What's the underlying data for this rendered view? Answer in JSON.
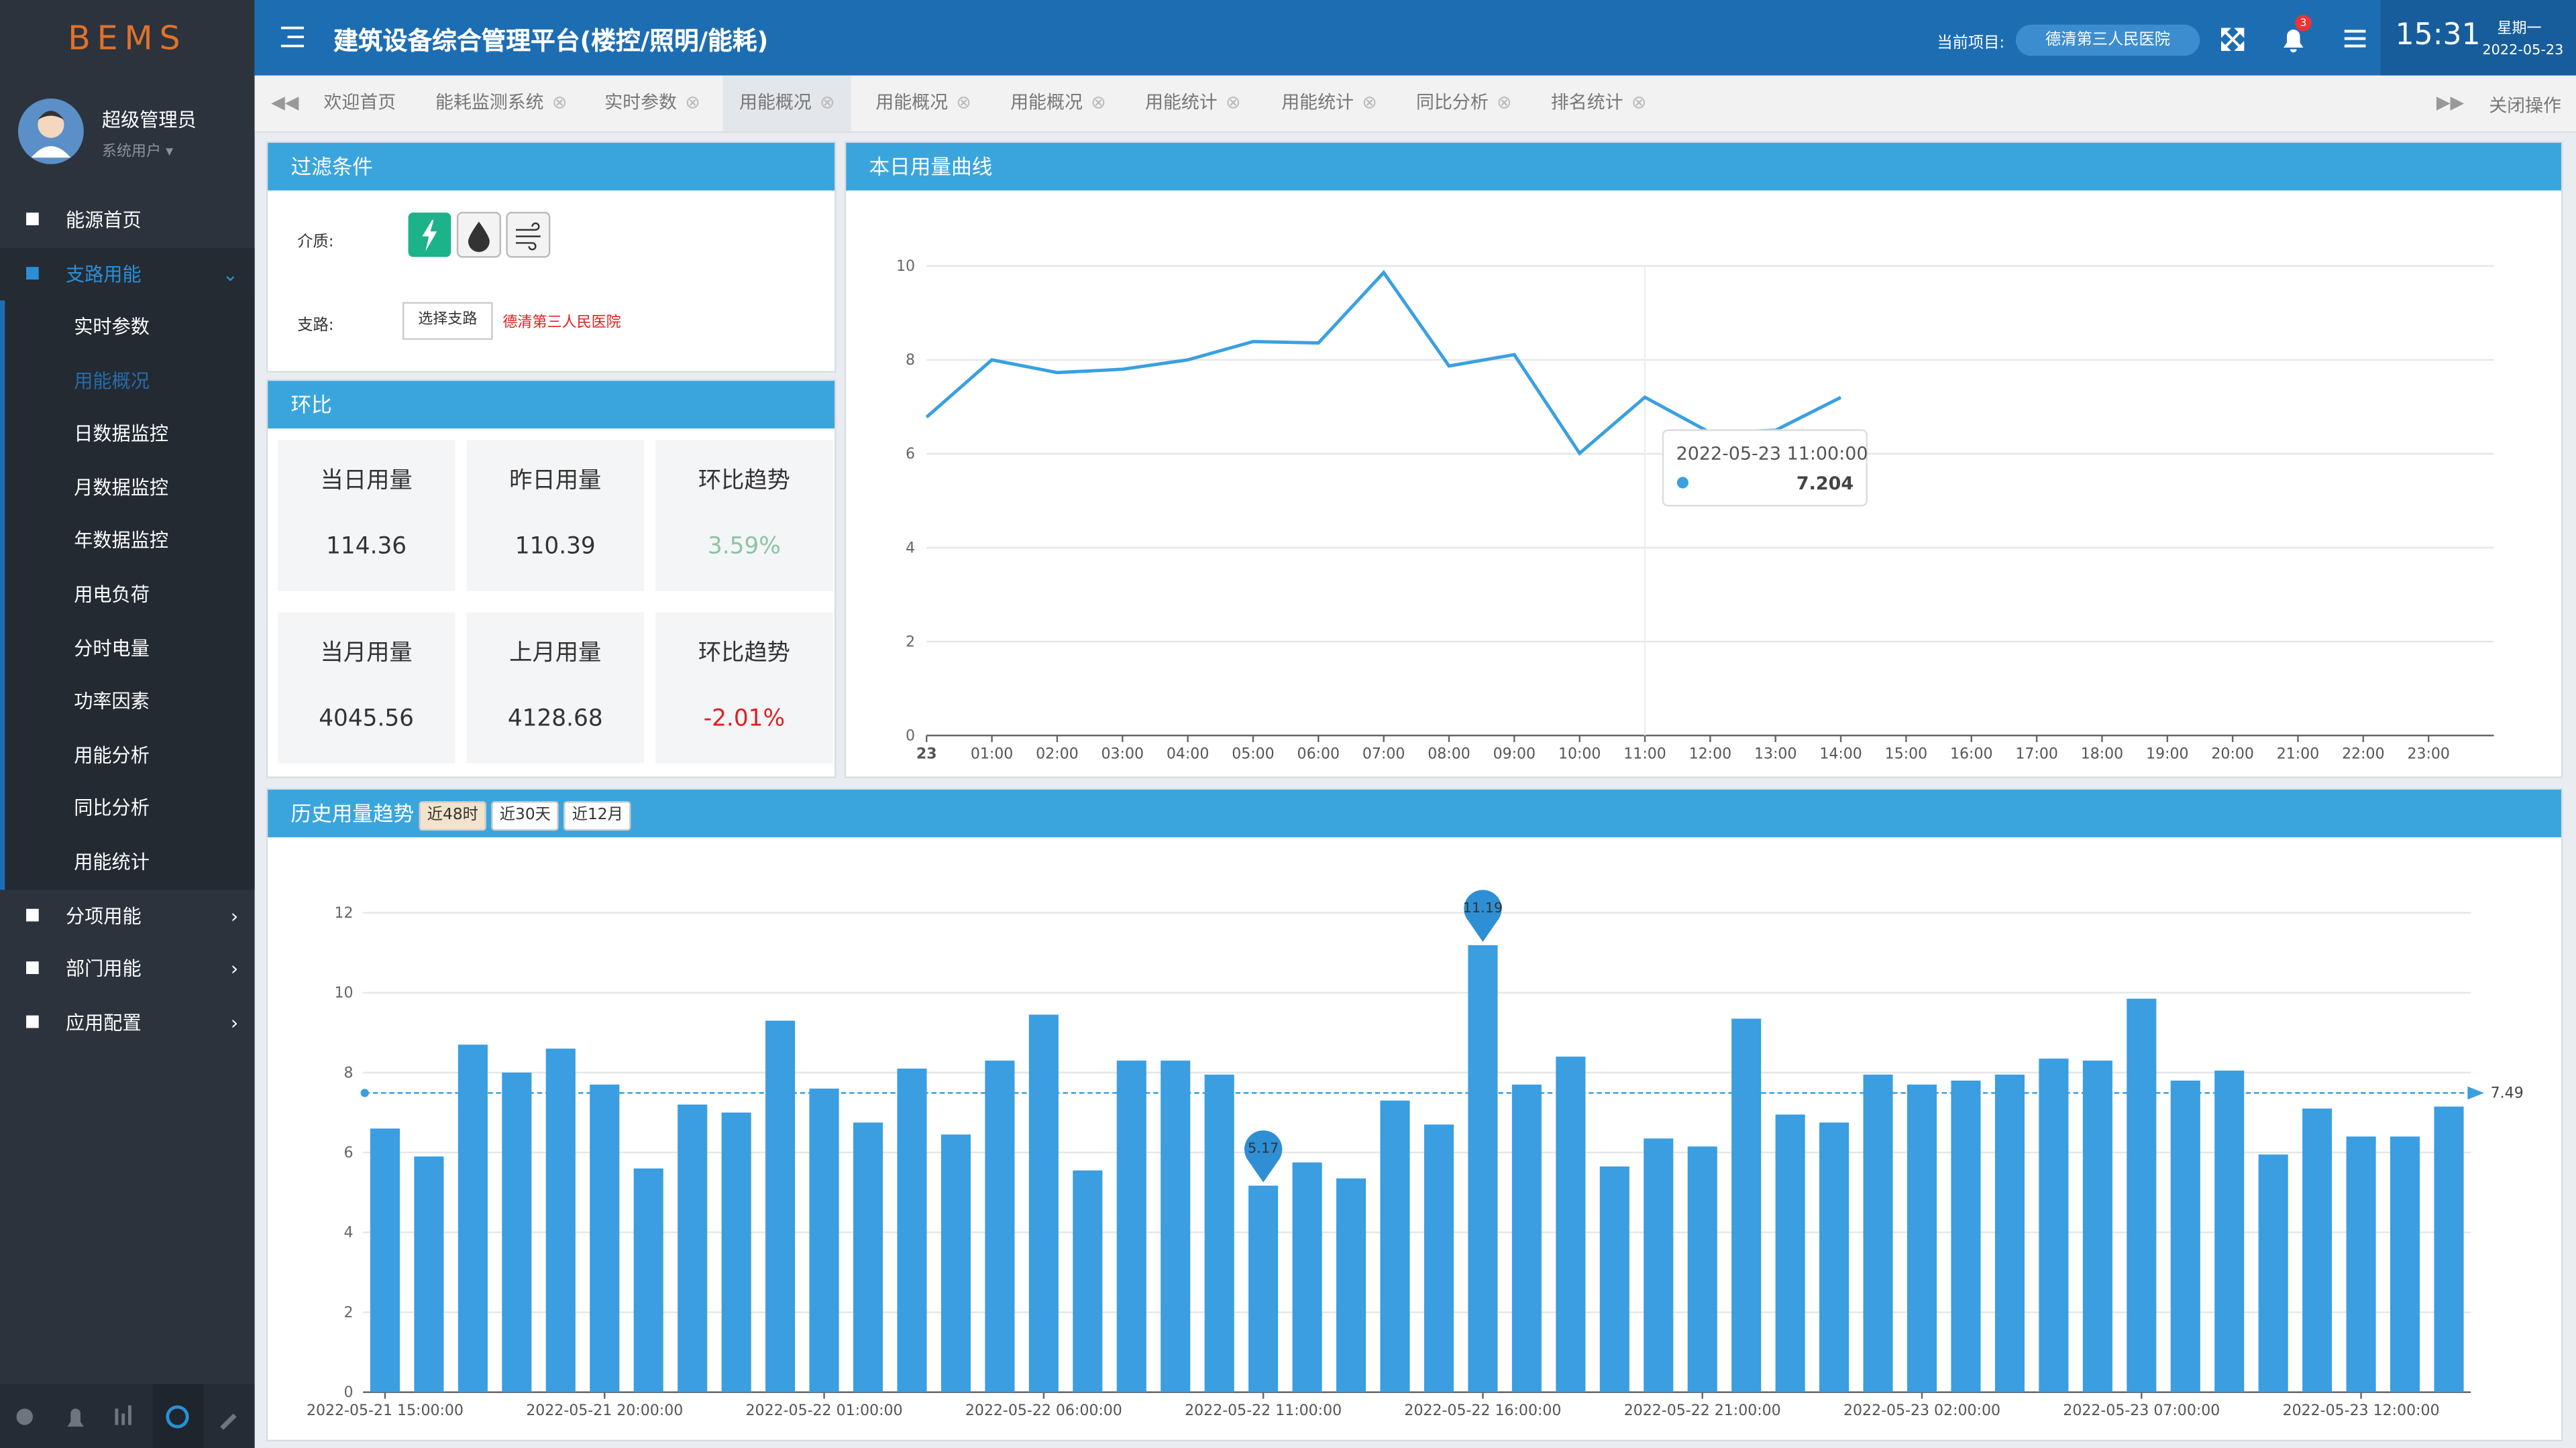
{
  "header": {
    "logo": "BEMS",
    "title": "建筑设备综合管理平台(楼控/照明/能耗)",
    "project_label": "当前项目:",
    "project": "德清第三人民医院",
    "badge": "3",
    "time": "15:31",
    "weekday": "星期一",
    "date": "2022-05-23"
  },
  "sidebar": {
    "user": "超级管理员",
    "role": "系统用户",
    "menu": [
      {
        "label": "能源首页"
      },
      {
        "label": "支路用能",
        "active": true,
        "children": [
          "实时参数",
          "用能概况",
          "日数据监控",
          "月数据监控",
          "年数据监控",
          "用电负荷",
          "分时电量",
          "功率因素",
          "用能分析",
          "同比分析",
          "用能统计"
        ],
        "active_child": 1
      },
      {
        "label": "分项用能"
      },
      {
        "label": "部门用能"
      },
      {
        "label": "应用配置"
      }
    ]
  },
  "tabs": {
    "items": [
      "欢迎首页",
      "能耗监测系统",
      "实时参数",
      "用能概况",
      "用能概况",
      "用能概况",
      "用能统计",
      "用能统计",
      "同比分析",
      "排名统计"
    ],
    "active": 3,
    "close_ops": "关闭操作"
  },
  "filter": {
    "title": "过滤条件",
    "medium_label": "介质:",
    "branch_label": "支路:",
    "branch_button": "选择支路",
    "branch_value": "德清第三人民医院"
  },
  "ratio": {
    "title": "环比",
    "cells": [
      {
        "label": "当日用量",
        "value": "114.36"
      },
      {
        "label": "昨日用量",
        "value": "110.39"
      },
      {
        "label": "环比趋势",
        "value": "3.59%",
        "color": "#8cc4a4"
      },
      {
        "label": "当月用量",
        "value": "4045.56"
      },
      {
        "label": "上月用量",
        "value": "4128.68"
      },
      {
        "label": "环比趋势",
        "value": "-2.01%",
        "color": "#e02020"
      }
    ]
  },
  "daily_chart": {
    "type": "line",
    "title": "本日用量曲线",
    "color": "#3aa0e0",
    "categories": [
      "23",
      "01:00",
      "02:00",
      "03:00",
      "04:00",
      "05:00",
      "06:00",
      "07:00",
      "08:00",
      "09:00",
      "10:00",
      "11:00",
      "12:00",
      "13:00",
      "14:00",
      "15:00",
      "16:00",
      "17:00",
      "18:00",
      "19:00",
      "20:00",
      "21:00",
      "22:00",
      "23:00"
    ],
    "values": [
      6.78,
      8.0,
      7.73,
      7.8,
      8.0,
      8.39,
      8.36,
      9.86,
      7.87,
      8.11,
      6.01,
      7.204,
      6.45,
      6.5,
      7.2,
      null,
      null,
      null,
      null,
      null,
      null,
      null,
      null,
      null
    ],
    "ylim": [
      0,
      10
    ],
    "yticks": [
      0,
      2,
      4,
      6,
      8,
      10
    ],
    "grid": true,
    "tooltip": {
      "title": "2022-05-23 11:00:00",
      "index": 11
    }
  },
  "history_chart": {
    "type": "bar",
    "title": "历史用量趋势",
    "buttons": [
      "近48时",
      "近30天",
      "近12月"
    ],
    "color": "#3a9ee0",
    "categories": [
      "2022-05-21 15:00:00",
      null,
      null,
      null,
      null,
      "2022-05-21 20:00:00",
      null,
      null,
      null,
      null,
      "2022-05-22 01:00:00",
      null,
      null,
      null,
      null,
      "2022-05-22 06:00:00",
      null,
      null,
      null,
      null,
      "2022-05-22 11:00:00",
      null,
      null,
      null,
      null,
      "2022-05-22 16:00:00",
      null,
      null,
      null,
      null,
      "2022-05-22 21:00:00",
      null,
      null,
      null,
      null,
      "2022-05-23 02:00:00",
      null,
      null,
      null,
      null,
      "2022-05-23 07:00:00",
      null,
      null,
      null,
      null,
      "2022-05-23 12:00:00",
      null,
      null
    ],
    "values": [
      6.6,
      5.9,
      8.7,
      8.0,
      8.6,
      7.7,
      5.6,
      7.2,
      7.0,
      9.3,
      7.6,
      6.75,
      8.1,
      6.45,
      8.3,
      9.45,
      5.55,
      8.3,
      8.3,
      7.95,
      5.17,
      5.75,
      5.35,
      7.3,
      6.7,
      11.19,
      7.7,
      8.4,
      5.65,
      6.35,
      6.15,
      9.35,
      6.95,
      6.75,
      7.95,
      7.7,
      7.8,
      7.95,
      8.35,
      8.3,
      9.85,
      7.8,
      8.05,
      5.95,
      7.1,
      6.4,
      6.4,
      7.15
    ],
    "ylim": [
      0,
      12
    ],
    "yticks": [
      0,
      2,
      4,
      6,
      8,
      10,
      12
    ],
    "grid": true,
    "pins": [
      25,
      20
    ],
    "mark_line": {
      "value": 7.49
    }
  }
}
